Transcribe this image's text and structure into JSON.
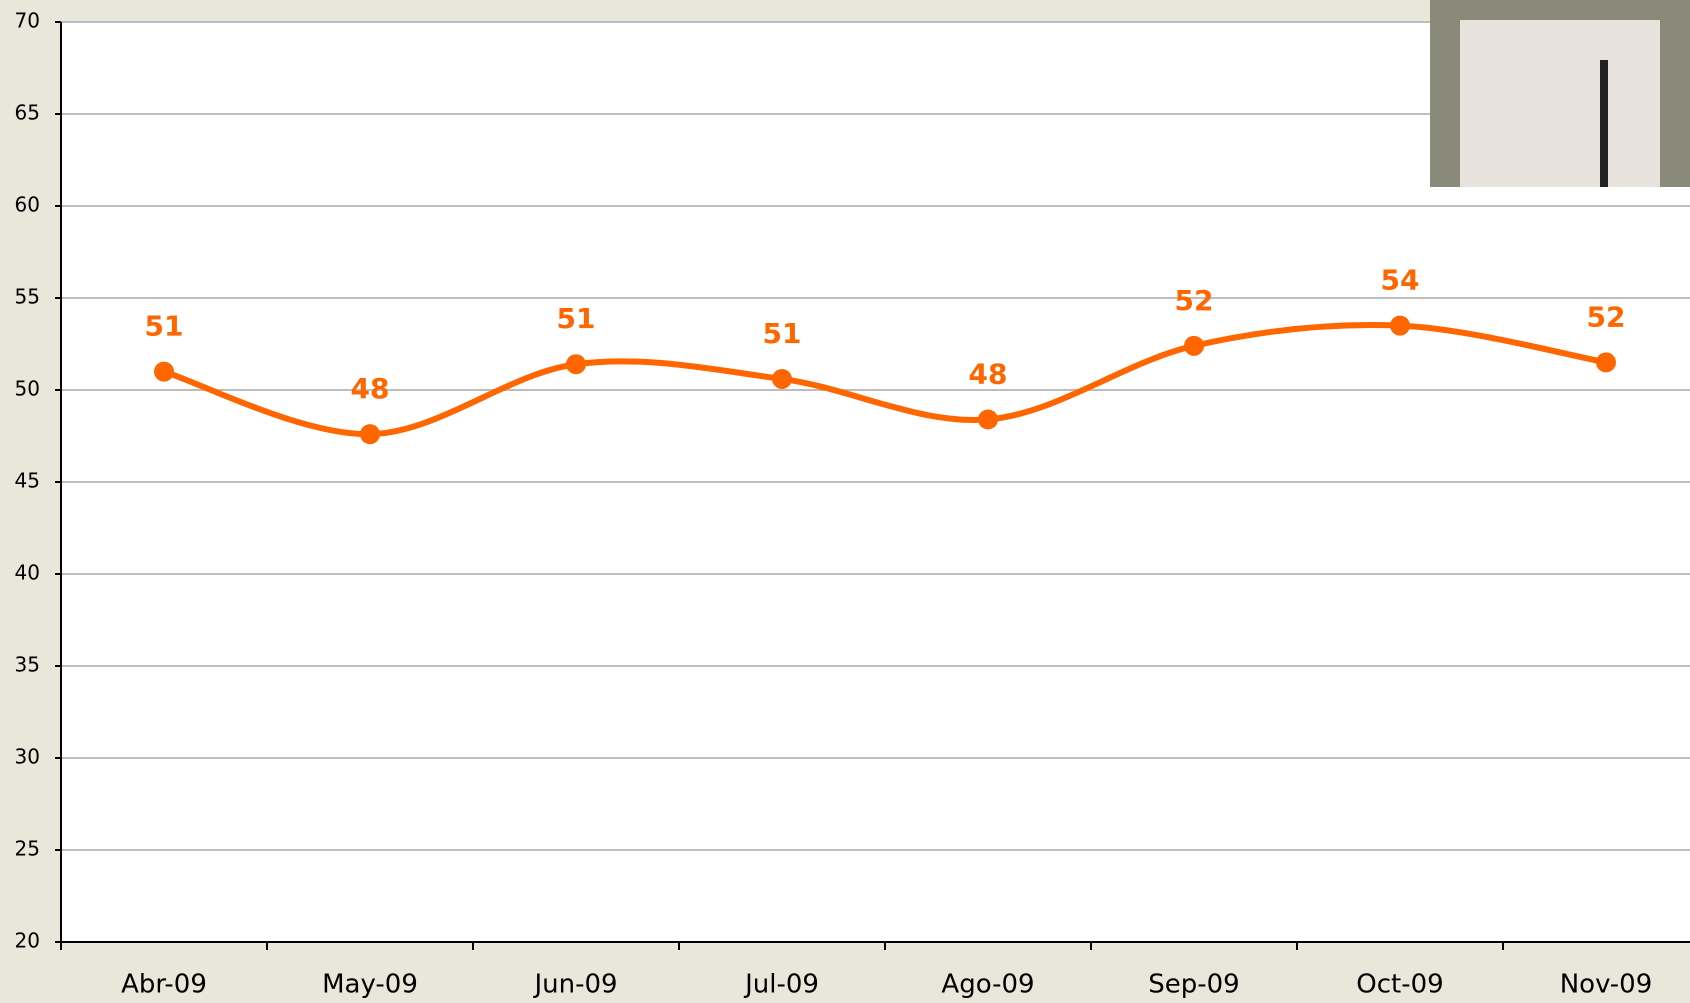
{
  "chart_data": {
    "type": "line",
    "categories": [
      "Abr-09",
      "May-09",
      "Jun-09",
      "Jul-09",
      "Ago-09",
      "Sep-09",
      "Oct-09",
      "Nov-09"
    ],
    "series": [
      {
        "name": null,
        "color": "#ff6600",
        "values": [
          51,
          47.6,
          51.4,
          50.6,
          48.4,
          52.4,
          53.5,
          51.5
        ],
        "value_labels": [
          "51",
          "48",
          "51",
          "51",
          "48",
          "52",
          "54",
          "52"
        ]
      }
    ],
    "ylim": [
      20,
      70
    ],
    "yticks": [
      20,
      25,
      30,
      35,
      40,
      45,
      50,
      55,
      60,
      65,
      70
    ],
    "grid": true,
    "smooth": true
  }
}
